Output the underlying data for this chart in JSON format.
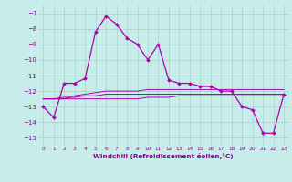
{
  "x": [
    0,
    1,
    2,
    3,
    4,
    5,
    6,
    7,
    8,
    9,
    10,
    11,
    12,
    13,
    14,
    15,
    16,
    17,
    18,
    19,
    20,
    21,
    22,
    23
  ],
  "line1": [
    -13,
    -13.7,
    -11.5,
    -11.5,
    -11.2,
    -8.2,
    -7.2,
    -7.7,
    -8.6,
    -9.0,
    -10.0,
    -9.0,
    -11.3,
    -11.5,
    -11.5,
    -11.7,
    -11.7,
    -12.0,
    -12.0,
    -13.0,
    -13.2,
    -14.7,
    -14.7,
    -12.2
  ],
  "line2": [
    -12.5,
    -12.5,
    -12.5,
    -12.3,
    -12.2,
    -12.1,
    -12.0,
    -12.0,
    -12.0,
    -12.0,
    -11.9,
    -11.9,
    -11.9,
    -11.9,
    -11.9,
    -11.9,
    -11.9,
    -11.9,
    -11.9,
    -11.9,
    -11.9,
    -11.9,
    -11.9,
    -11.9
  ],
  "line3": [
    -12.5,
    -12.5,
    -12.4,
    -12.4,
    -12.3,
    -12.3,
    -12.2,
    -12.2,
    -12.2,
    -12.2,
    -12.2,
    -12.2,
    -12.2,
    -12.2,
    -12.2,
    -12.2,
    -12.2,
    -12.2,
    -12.2,
    -12.2,
    -12.2,
    -12.2,
    -12.2,
    -12.2
  ],
  "line4": [
    -12.5,
    -12.5,
    -12.5,
    -12.5,
    -12.5,
    -12.5,
    -12.5,
    -12.5,
    -12.5,
    -12.5,
    -12.4,
    -12.4,
    -12.4,
    -12.3,
    -12.3,
    -12.3,
    -12.3,
    -12.3,
    -12.3,
    -12.3,
    -12.3,
    -12.3,
    -12.3,
    -12.3
  ],
  "bg_color": "#c8ece9",
  "grid_color": "#a0d4d0",
  "line_color": "#aa00aa",
  "xlabel": "Windchill (Refroidissement éolien,°C)",
  "ylim": [
    -15.5,
    -6.5
  ],
  "xlim": [
    -0.5,
    23.5
  ],
  "yticks": [
    -15,
    -14,
    -13,
    -12,
    -11,
    -10,
    -9,
    -8,
    -7
  ],
  "xticks": [
    0,
    1,
    2,
    3,
    4,
    5,
    6,
    7,
    8,
    9,
    10,
    11,
    12,
    13,
    14,
    15,
    16,
    17,
    18,
    19,
    20,
    21,
    22,
    23
  ]
}
